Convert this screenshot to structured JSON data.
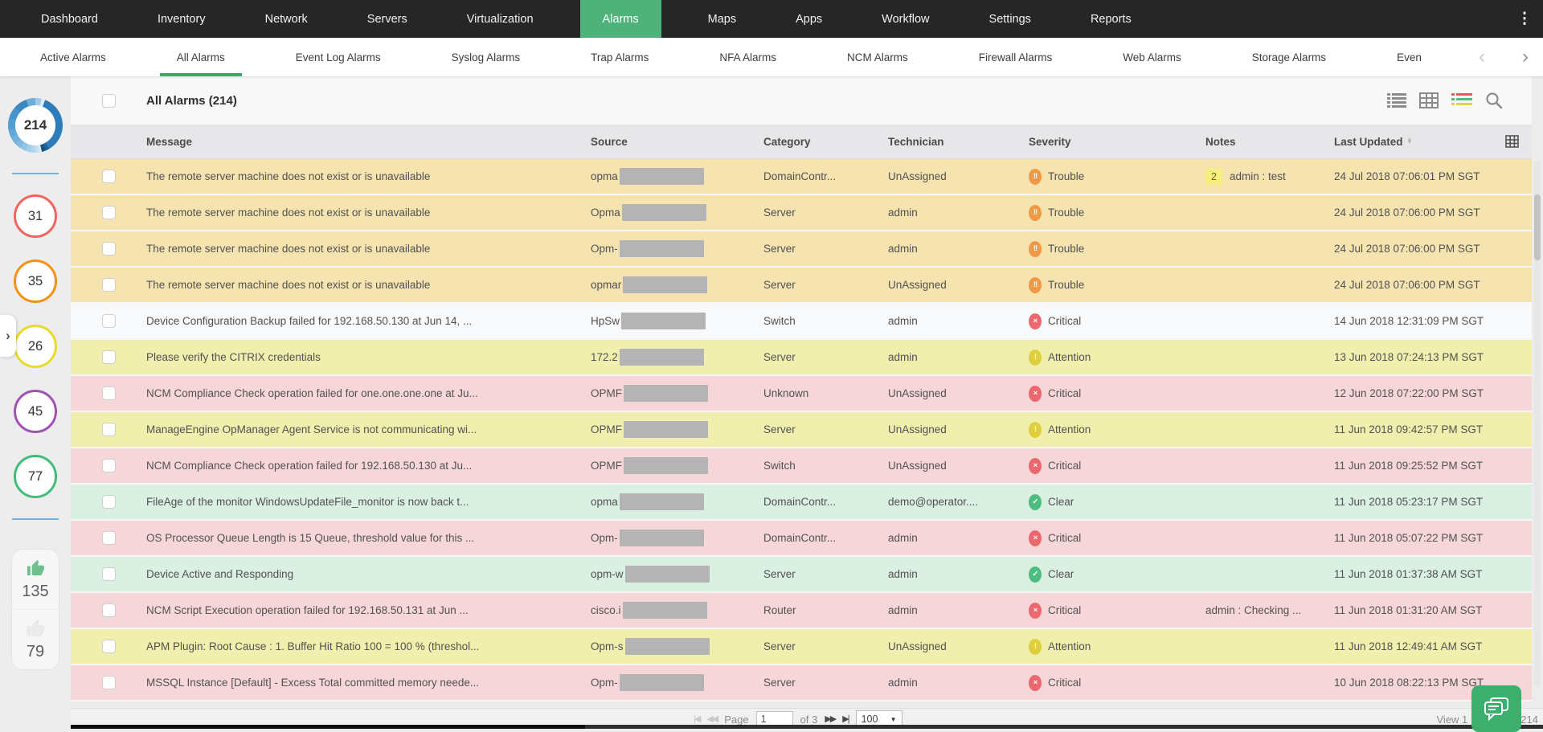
{
  "nav": {
    "items": [
      {
        "label": "Dashboard",
        "active": false
      },
      {
        "label": "Inventory",
        "active": false
      },
      {
        "label": "Network",
        "active": false
      },
      {
        "label": "Servers",
        "active": false
      },
      {
        "label": "Virtualization",
        "active": false
      },
      {
        "label": "Alarms",
        "active": true
      },
      {
        "label": "Maps",
        "active": false
      },
      {
        "label": "Apps",
        "active": false
      },
      {
        "label": "Workflow",
        "active": false
      },
      {
        "label": "Settings",
        "active": false
      },
      {
        "label": "Reports",
        "active": false
      }
    ],
    "more_icon": "⋮",
    "active_color": "#4eb37a"
  },
  "tabs": {
    "items": [
      {
        "label": "Active Alarms",
        "active": false
      },
      {
        "label": "All Alarms",
        "active": true
      },
      {
        "label": "Event Log Alarms",
        "active": false
      },
      {
        "label": "Syslog Alarms",
        "active": false
      },
      {
        "label": "Trap Alarms",
        "active": false
      },
      {
        "label": "NFA Alarms",
        "active": false
      },
      {
        "label": "NCM Alarms",
        "active": false
      },
      {
        "label": "Firewall Alarms",
        "active": false
      },
      {
        "label": "Web Alarms",
        "active": false
      },
      {
        "label": "Storage Alarms",
        "active": false
      },
      {
        "label": "Even",
        "active": false
      }
    ],
    "prev_icon": "‹",
    "next_icon": "›",
    "active_underline_color": "#35ab68"
  },
  "sidebar": {
    "total": {
      "value": "214"
    },
    "counts": [
      {
        "name": "critical",
        "value": "31",
        "color": "#f4645e"
      },
      {
        "name": "trouble",
        "value": "35",
        "color": "#f79113"
      },
      {
        "name": "attention",
        "value": "26",
        "color": "#e8dc2b"
      },
      {
        "name": "service-down",
        "value": "45",
        "color": "#a052b0"
      },
      {
        "name": "clear",
        "value": "77",
        "color": "#41bd79"
      }
    ],
    "likes": {
      "up": "135",
      "down": "79"
    },
    "expand_icon": "›"
  },
  "toolbar": {
    "title": "All Alarms (214)",
    "icons": [
      "list-view-icon",
      "column-view-icon",
      "severity-view-icon",
      "search-icon"
    ]
  },
  "table": {
    "columns": [
      "Message",
      "Source",
      "Category",
      "Technician",
      "Severity",
      "Notes",
      "Last Updated"
    ],
    "severity_styles": {
      "Trouble": {
        "color": "#f09a47",
        "glyph": "!!"
      },
      "Critical": {
        "color": "#ed676e",
        "glyph": "×"
      },
      "Attention": {
        "color": "#dfcf3e",
        "glyph": "!"
      },
      "Clear": {
        "color": "#4dbd80",
        "glyph": "✓"
      }
    },
    "row_tones": {
      "trouble": "#f5e3b0",
      "plain": "#f8f9fa",
      "attention": "#f1efae",
      "critical": "#f7d6da",
      "clear": "#d9f0e3"
    },
    "rows": [
      {
        "message": "The remote server machine does not exist or is unavailable",
        "source": "opma",
        "category": "DomainContr...",
        "technician": "UnAssigned",
        "severity": "Trouble",
        "note_badge": "2",
        "note": "admin : test",
        "time": "24 Jul 2018 07:06:01 PM SGT",
        "tone": "trouble"
      },
      {
        "message": "The remote server machine does not exist or is unavailable",
        "source": "Opma",
        "category": "Server",
        "technician": "admin",
        "severity": "Trouble",
        "note_badge": "",
        "note": "",
        "time": "24 Jul 2018 07:06:00 PM SGT",
        "tone": "trouble"
      },
      {
        "message": "The remote server machine does not exist or is unavailable",
        "source": "Opm-",
        "category": "Server",
        "technician": "admin",
        "severity": "Trouble",
        "note_badge": "",
        "note": "",
        "time": "24 Jul 2018 07:06:00 PM SGT",
        "tone": "trouble"
      },
      {
        "message": "The remote server machine does not exist or is unavailable",
        "source": "opmar",
        "category": "Server",
        "technician": "UnAssigned",
        "severity": "Trouble",
        "note_badge": "",
        "note": "",
        "time": "24 Jul 2018 07:06:00 PM SGT",
        "tone": "trouble"
      },
      {
        "message": "Device Configuration Backup failed for 192.168.50.130 at Jun 14, ...",
        "source": "HpSw",
        "category": "Switch",
        "technician": "admin",
        "severity": "Critical",
        "note_badge": "",
        "note": "",
        "time": "14 Jun 2018 12:31:09 PM SGT",
        "tone": "plain"
      },
      {
        "message": "Please verify the CITRIX credentials",
        "source": "172.2",
        "category": "Server",
        "technician": "admin",
        "severity": "Attention",
        "note_badge": "",
        "note": "",
        "time": "13 Jun 2018 07:24:13 PM SGT",
        "tone": "attention"
      },
      {
        "message": "NCM Compliance Check operation failed for one.one.one.one at Ju...",
        "source": "OPMF",
        "category": "Unknown",
        "technician": "UnAssigned",
        "severity": "Critical",
        "note_badge": "",
        "note": "",
        "time": "12 Jun 2018 07:22:00 PM SGT",
        "tone": "critical"
      },
      {
        "message": "ManageEngine OpManager Agent Service is not communicating wi...",
        "source": "OPMF",
        "category": "Server",
        "technician": "UnAssigned",
        "severity": "Attention",
        "note_badge": "",
        "note": "",
        "time": "11 Jun 2018 09:42:57 PM SGT",
        "tone": "attention"
      },
      {
        "message": "NCM Compliance Check operation failed for 192.168.50.130 at Ju...",
        "source": "OPMF",
        "category": "Switch",
        "technician": "UnAssigned",
        "severity": "Critical",
        "note_badge": "",
        "note": "",
        "time": "11 Jun 2018 09:25:52 PM SGT",
        "tone": "critical"
      },
      {
        "message": "FileAge of the monitor WindowsUpdateFile_monitor is now back t...",
        "source": "opma",
        "category": "DomainContr...",
        "technician": "demo@operator....",
        "severity": "Clear",
        "note_badge": "",
        "note": "",
        "time": "11 Jun 2018 05:23:17 PM SGT",
        "tone": "clear"
      },
      {
        "message": "OS Processor Queue Length is 15 Queue, threshold value for this ...",
        "source": "Opm-",
        "category": "DomainContr...",
        "technician": "admin",
        "severity": "Critical",
        "note_badge": "",
        "note": "",
        "time": "11 Jun 2018 05:07:22 PM SGT",
        "tone": "critical"
      },
      {
        "message": "Device Active and Responding",
        "source": "opm-w",
        "category": "Server",
        "technician": "admin",
        "severity": "Clear",
        "note_badge": "",
        "note": "",
        "time": "11 Jun 2018 01:37:38 AM SGT",
        "tone": "clear"
      },
      {
        "message": "NCM Script Execution operation failed for 192.168.50.131 at Jun ...",
        "source": "cisco.i",
        "category": "Router",
        "technician": "admin",
        "severity": "Critical",
        "note_badge": "",
        "note": "admin : Checking ...",
        "time": "11 Jun 2018 01:31:20 AM SGT",
        "tone": "critical"
      },
      {
        "message": "APM Plugin: Root Cause : 1. Buffer Hit Ratio 100 = 100 % (threshol...",
        "source": "Opm-s",
        "category": "Server",
        "technician": "UnAssigned",
        "severity": "Attention",
        "note_badge": "",
        "note": "",
        "time": "11 Jun 2018 12:49:41 AM SGT",
        "tone": "attention"
      },
      {
        "message": "MSSQL Instance [Default] - Excess Total committed memory neede...",
        "source": "Opm-",
        "category": "Server",
        "technician": "admin",
        "severity": "Critical",
        "note_badge": "",
        "note": "",
        "time": "10 Jun 2018 08:22:13 PM SGT",
        "tone": "critical"
      }
    ]
  },
  "pagination": {
    "first_icon": "|◀",
    "prev_icon": "◀◀",
    "page_label": "Page",
    "page_value": "1",
    "of_label": "of 3",
    "next_icon": "▶▶",
    "last_icon": "▶|",
    "per_page": "100",
    "dropdown_icon": "▼",
    "view_left": "View 1",
    "view_right": "214"
  },
  "chat_icon": "chat-bubbles-icon"
}
